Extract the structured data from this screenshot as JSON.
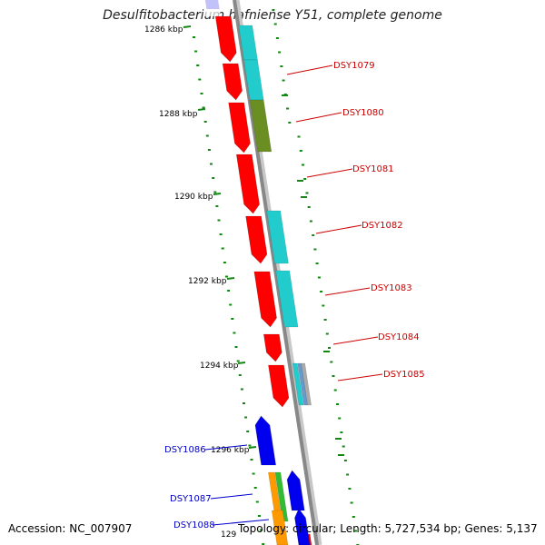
{
  "title": "Desulfitobacterium hafniense Y51, complete genome",
  "footer": {
    "accession": "Accession: NC_007907",
    "topology": "Topology: circular; Length: 5,727,534 bp; Genes: 5,137"
  },
  "scale_labels": [
    "1286 kbp",
    "1288 kbp",
    "1290 kbp",
    "1292 kbp",
    "1294 kbp",
    "1296 kbp",
    "129"
  ],
  "gene_labels": [
    {
      "text": "DSY1079",
      "color": "#cc0000"
    },
    {
      "text": "DSY1080",
      "color": "#cc0000"
    },
    {
      "text": "DSY1081",
      "color": "#cc0000"
    },
    {
      "text": "DSY1082",
      "color": "#cc0000"
    },
    {
      "text": "DSY1083",
      "color": "#cc0000"
    },
    {
      "text": "DSY1084",
      "color": "#cc0000"
    },
    {
      "text": "DSY1085",
      "color": "#cc0000"
    },
    {
      "text": "DSY1086",
      "color": "#0000cc"
    },
    {
      "text": "DSY1087",
      "color": "#0000cc"
    },
    {
      "text": "DSY1088",
      "color": "#0000cc"
    }
  ],
  "colors": {
    "forward_gene": "#ff0000",
    "reverse_gene": "#0000ee",
    "cog_cyan": "#22cccc",
    "cog_olive": "#6b8e23",
    "cog_orange": "#ff9900",
    "cog_green": "#33bb33",
    "gc_tick": "#118811",
    "backbone": "#888888"
  }
}
